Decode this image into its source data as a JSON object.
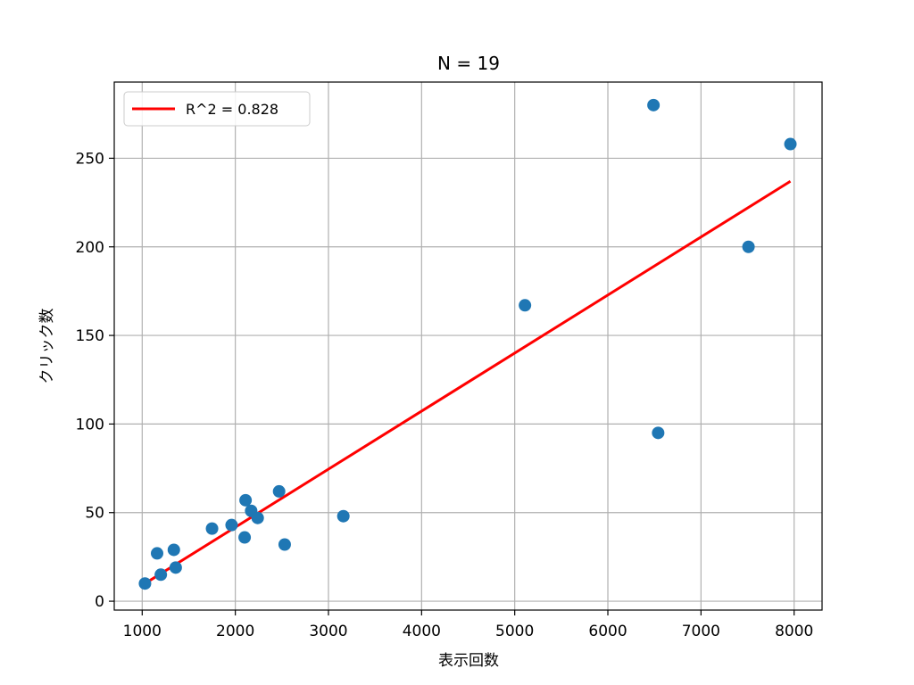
{
  "chart_data": {
    "type": "scatter",
    "title": "N = 19",
    "xlabel": "表示回数",
    "ylabel": "クリック数",
    "xlim": [
      700,
      8300
    ],
    "ylim": [
      -5,
      293
    ],
    "xticks": [
      1000,
      2000,
      3000,
      4000,
      5000,
      6000,
      7000,
      8000
    ],
    "yticks": [
      0,
      50,
      100,
      150,
      200,
      250
    ],
    "grid": true,
    "legend_position": "top-left",
    "points": [
      {
        "x": 1030,
        "y": 10
      },
      {
        "x": 1160,
        "y": 27
      },
      {
        "x": 1200,
        "y": 15
      },
      {
        "x": 1340,
        "y": 29
      },
      {
        "x": 1360,
        "y": 19
      },
      {
        "x": 1750,
        "y": 41
      },
      {
        "x": 1960,
        "y": 43
      },
      {
        "x": 2100,
        "y": 36
      },
      {
        "x": 2110,
        "y": 57
      },
      {
        "x": 2170,
        "y": 51
      },
      {
        "x": 2240,
        "y": 47
      },
      {
        "x": 2470,
        "y": 62
      },
      {
        "x": 2530,
        "y": 32
      },
      {
        "x": 3160,
        "y": 48
      },
      {
        "x": 5110,
        "y": 167
      },
      {
        "x": 6490,
        "y": 280
      },
      {
        "x": 6540,
        "y": 95
      },
      {
        "x": 7510,
        "y": 200
      },
      {
        "x": 7960,
        "y": 258
      }
    ],
    "fit_line": {
      "label": "R^2 = 0.828",
      "x": [
        1030,
        7960
      ],
      "y": [
        10,
        237
      ]
    },
    "colors": {
      "points": "#1f77b4",
      "fit": "#ff0000",
      "grid": "#b0b0b0"
    }
  }
}
